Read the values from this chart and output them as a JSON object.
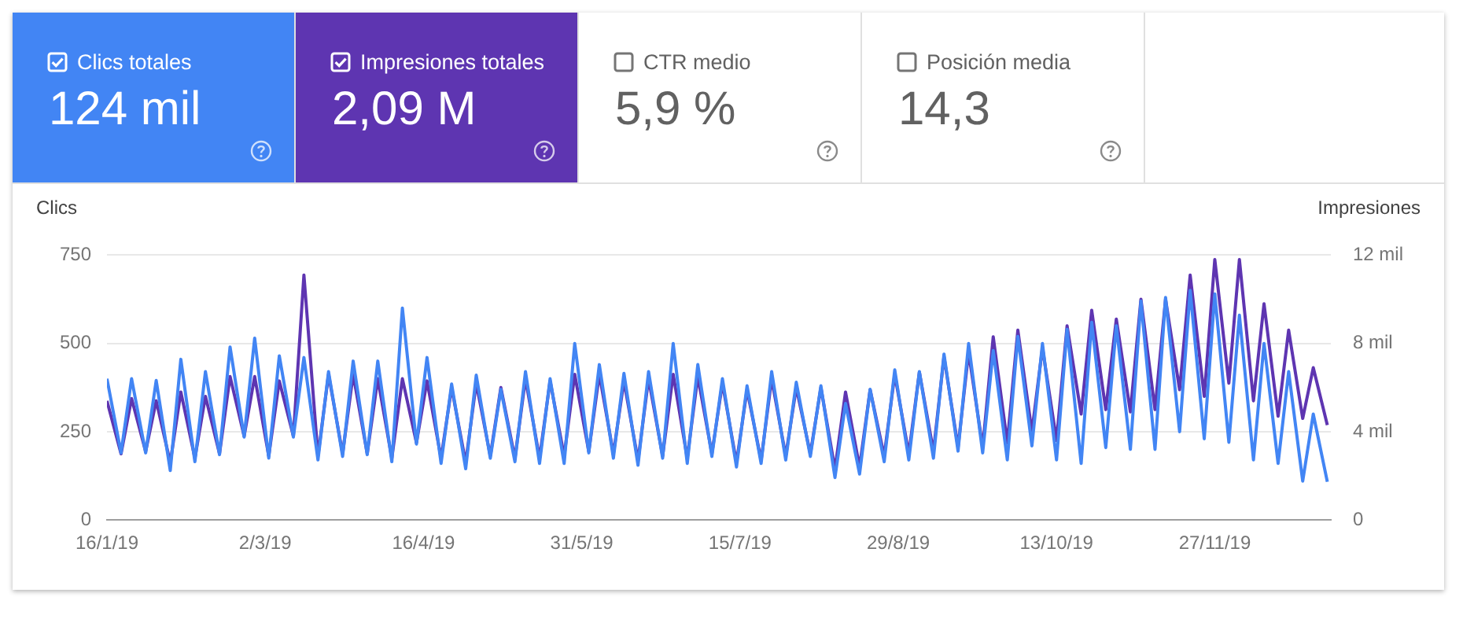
{
  "chart_data": [
    {
      "type": "other",
      "annotations": [
        "Clics totales",
        "124 mil",
        "Impresiones totales",
        "2,09 M",
        "CTR medio",
        "5,9 %",
        "Posición media",
        "14,3"
      ],
      "colors": [
        "#4285f4",
        "#5e35b1",
        null,
        null
      ]
    },
    {
      "type": "line",
      "ylabel": "Clics",
      "y2label": "Impresiones",
      "grid": "y",
      "marker": "none",
      "x": [
        "2019-01-16",
        "2019-01-20",
        "2019-01-23",
        "2019-01-27",
        "2019-01-30",
        "2019-02-03",
        "2019-02-06",
        "2019-02-10",
        "2019-02-13",
        "2019-02-17",
        "2019-02-20",
        "2019-02-24",
        "2019-02-27",
        "2019-03-03",
        "2019-03-06",
        "2019-03-10",
        "2019-03-13",
        "2019-03-17",
        "2019-03-20",
        "2019-03-24",
        "2019-03-27",
        "2019-03-31",
        "2019-04-03",
        "2019-04-07",
        "2019-04-10",
        "2019-04-14",
        "2019-04-17",
        "2019-04-21",
        "2019-04-24",
        "2019-04-28",
        "2019-05-01",
        "2019-05-05",
        "2019-05-08",
        "2019-05-12",
        "2019-05-15",
        "2019-05-19",
        "2019-05-22",
        "2019-05-26",
        "2019-05-29",
        "2019-06-02",
        "2019-06-05",
        "2019-06-09",
        "2019-06-12",
        "2019-06-16",
        "2019-06-19",
        "2019-06-23",
        "2019-06-26",
        "2019-06-30",
        "2019-07-03",
        "2019-07-07",
        "2019-07-10",
        "2019-07-14",
        "2019-07-17",
        "2019-07-21",
        "2019-07-24",
        "2019-07-28",
        "2019-07-31",
        "2019-08-04",
        "2019-08-07",
        "2019-08-11",
        "2019-08-14",
        "2019-08-18",
        "2019-08-21",
        "2019-08-25",
        "2019-08-28",
        "2019-09-01",
        "2019-09-04",
        "2019-09-08",
        "2019-09-11",
        "2019-09-15",
        "2019-09-18",
        "2019-09-22",
        "2019-09-25",
        "2019-09-29",
        "2019-10-02",
        "2019-10-06",
        "2019-10-09",
        "2019-10-13",
        "2019-10-16",
        "2019-10-20",
        "2019-10-23",
        "2019-10-27",
        "2019-10-30",
        "2019-11-03",
        "2019-11-06",
        "2019-11-10",
        "2019-11-13",
        "2019-11-17",
        "2019-11-20",
        "2019-11-24",
        "2019-11-27",
        "2019-12-01",
        "2019-12-04",
        "2019-12-08",
        "2019-12-11",
        "2019-12-15",
        "2019-12-18",
        "2019-12-22",
        "2019-12-25",
        "2019-12-29"
      ],
      "xlim": [
        "2019-01-16",
        "2019-12-30"
      ],
      "xticks": [
        {
          "value": "2019-01-16",
          "label": "16/1/19"
        },
        {
          "value": "2019-03-02",
          "label": "2/3/19"
        },
        {
          "value": "2019-04-16",
          "label": "16/4/19"
        },
        {
          "value": "2019-05-31",
          "label": "31/5/19"
        },
        {
          "value": "2019-07-15",
          "label": "15/7/19"
        },
        {
          "value": "2019-08-29",
          "label": "29/8/19"
        },
        {
          "value": "2019-10-13",
          "label": "13/10/19"
        },
        {
          "value": "2019-11-27",
          "label": "27/11/19"
        }
      ],
      "ylim": [
        0,
        750
      ],
      "yticks": [
        0,
        250,
        500,
        750
      ],
      "y2lim": [
        0,
        12
      ],
      "y2ticks": [
        0,
        {
          "value": 4,
          "label": "4 mil"
        },
        {
          "value": 8,
          "label": "8 mil"
        },
        {
          "value": 12,
          "label": "12 mil"
        }
      ],
      "series": [
        {
          "color": "#5e35b1",
          "axis": "y2",
          "values": [
            5.4,
            3.0,
            5.5,
            3.1,
            5.4,
            2.6,
            5.8,
            2.8,
            5.6,
            3.0,
            6.5,
            3.8,
            6.5,
            2.9,
            6.3,
            3.8,
            11.1,
            2.9,
            6.6,
            3.0,
            6.6,
            3.0,
            6.4,
            2.8,
            6.4,
            3.5,
            6.3,
            2.8,
            6.0,
            2.6,
            6.2,
            2.9,
            6.0,
            2.8,
            6.4,
            2.8,
            6.3,
            2.9,
            6.6,
            3.1,
            6.6,
            3.0,
            6.3,
            2.7,
            6.4,
            2.9,
            6.6,
            2.8,
            6.5,
            3.0,
            6.2,
            2.6,
            5.9,
            2.7,
            6.4,
            2.9,
            6.0,
            3.0,
            6.0,
            2.3,
            5.8,
            2.4,
            5.9,
            2.9,
            6.6,
            3.0,
            6.7,
            3.1,
            7.4,
            3.3,
            7.6,
            3.3,
            8.3,
            3.5,
            8.6,
            4.0,
            7.8,
            3.6,
            8.8,
            4.8,
            9.5,
            5.0,
            9.1,
            4.9,
            10.0,
            5.0,
            10.0,
            5.9,
            11.1,
            5.6,
            11.8,
            6.2,
            11.8,
            5.4,
            9.8,
            4.7,
            8.6,
            4.6,
            6.9,
            4.3
          ]
        },
        {
          "color": "#4285f4",
          "values": [
            400,
            190,
            400,
            190,
            395,
            140,
            455,
            165,
            420,
            185,
            490,
            235,
            515,
            175,
            465,
            235,
            460,
            170,
            420,
            180,
            450,
            185,
            450,
            165,
            600,
            215,
            460,
            160,
            385,
            145,
            410,
            175,
            370,
            165,
            420,
            160,
            400,
            160,
            500,
            190,
            440,
            175,
            415,
            155,
            420,
            175,
            500,
            160,
            440,
            180,
            400,
            150,
            380,
            160,
            420,
            170,
            390,
            180,
            380,
            120,
            330,
            130,
            370,
            165,
            425,
            170,
            420,
            175,
            470,
            195,
            500,
            190,
            480,
            170,
            520,
            210,
            500,
            170,
            540,
            160,
            560,
            205,
            550,
            200,
            620,
            200,
            630,
            250,
            650,
            230,
            640,
            220,
            580,
            170,
            500,
            160,
            420,
            110,
            300,
            108
          ]
        }
      ]
    }
  ]
}
